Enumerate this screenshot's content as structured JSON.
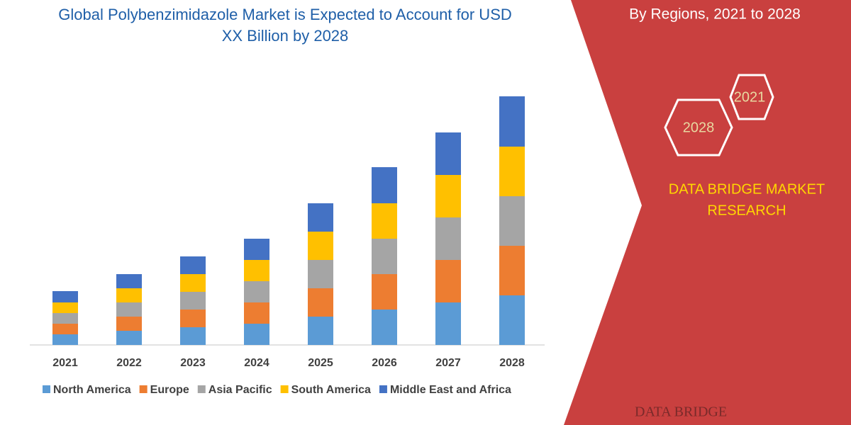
{
  "chart_data": {
    "type": "stacked_bar",
    "title": "Global Polybenzimidazole Market is Expected to Account for USD XX Billion by 2028",
    "categories": [
      "2021",
      "2022",
      "2023",
      "2024",
      "2025",
      "2026",
      "2027",
      "2028"
    ],
    "series": [
      {
        "name": "North America",
        "color": "#5b9bd5",
        "values": [
          15,
          20,
          25,
          30,
          40,
          50,
          60,
          70
        ]
      },
      {
        "name": "Europe",
        "color": "#ed7d31",
        "values": [
          15,
          20,
          25,
          30,
          40,
          50,
          60,
          70
        ]
      },
      {
        "name": "Asia Pacific",
        "color": "#a5a5a5",
        "values": [
          15,
          20,
          25,
          30,
          40,
          50,
          60,
          70
        ]
      },
      {
        "name": "South America",
        "color": "#ffc000",
        "values": [
          15,
          20,
          25,
          30,
          40,
          50,
          60,
          70
        ]
      },
      {
        "name": "Middle East and Africa",
        "color": "#4472c4",
        "values": [
          16,
          20,
          25,
          30,
          40,
          51,
          60,
          71
        ]
      }
    ]
  },
  "panel": {
    "subtitle": "By Regions, 2021 to 2028",
    "hex_labels": [
      "2021",
      "2028"
    ],
    "brand_lines": [
      "DATA BRIDGE MARKET",
      "RESEARCH"
    ],
    "logo": "DATA BRIDGE"
  }
}
